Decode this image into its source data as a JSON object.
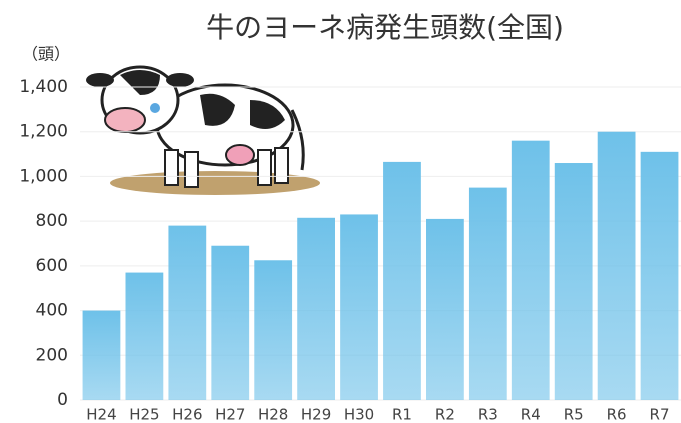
{
  "chart_data": {
    "type": "bar",
    "title": "牛のヨーネ病発生頭数(全国)",
    "y_label": "（頭）",
    "categories": [
      "H24",
      "H25",
      "H26",
      "H27",
      "H28",
      "H29",
      "H30",
      "R1",
      "R2",
      "R3",
      "R4",
      "R5",
      "R6",
      "R7"
    ],
    "values": [
      400,
      570,
      780,
      690,
      625,
      815,
      830,
      1065,
      810,
      950,
      1160,
      1060,
      1200,
      1110
    ],
    "color": "#6ec1e9",
    "ylim": [
      0,
      1400
    ],
    "yticks": [
      0,
      200,
      400,
      600,
      800,
      {
        "value": 1000,
        "label": "1,000"
      },
      {
        "value": 1200,
        "label": "1,200"
      },
      {
        "value": 1400,
        "label": "1,400"
      }
    ],
    "grid": true
  }
}
